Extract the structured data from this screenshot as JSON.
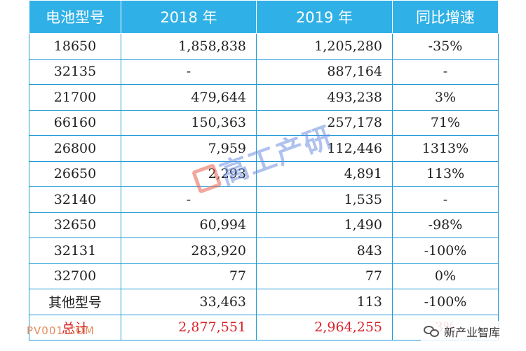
{
  "table": {
    "headers": [
      "电池型号",
      "2018 年",
      "2019 年",
      "同比增速"
    ],
    "rows": [
      {
        "model": "18650",
        "y2018": "1,858,838",
        "y2019": "1,205,280",
        "growth": "-35%"
      },
      {
        "model": "32135",
        "y2018": "-",
        "y2019": "887,164",
        "growth": "-"
      },
      {
        "model": "21700",
        "y2018": "479,644",
        "y2019": "493,238",
        "growth": "3%"
      },
      {
        "model": "66160",
        "y2018": "150,363",
        "y2019": "257,178",
        "growth": "71%"
      },
      {
        "model": "26800",
        "y2018": "7,959",
        "y2019": "112,446",
        "growth": "1313%"
      },
      {
        "model": "26650",
        "y2018": "2,293",
        "y2019": "4,891",
        "growth": "113%"
      },
      {
        "model": "32140",
        "y2018": "-",
        "y2019": "1,535",
        "growth": "-"
      },
      {
        "model": "32650",
        "y2018": "60,994",
        "y2019": "1,490",
        "growth": "-98%"
      },
      {
        "model": "32131",
        "y2018": "283,920",
        "y2019": "843",
        "growth": "-100%"
      },
      {
        "model": "32700",
        "y2018": "77",
        "y2019": "77",
        "growth": "0%"
      },
      {
        "model": "其他型号",
        "y2018": "33,463",
        "y2019": "113",
        "growth": "-100%"
      }
    ],
    "total": {
      "model": "总计",
      "y2018": "2,877,551",
      "y2019": "2,964,255",
      "growth": "3%"
    }
  },
  "watermark": {
    "text": "高工产研",
    "icon": "gg-logo-icon"
  },
  "overlay": {
    "left_source": "PV001.COM",
    "right_source": "新产业智库",
    "right_icon": "wechat-icon"
  },
  "colors": {
    "header_bg": "#2fb0e6",
    "border": "#1f9ad6",
    "total_text": "#d8232a"
  }
}
